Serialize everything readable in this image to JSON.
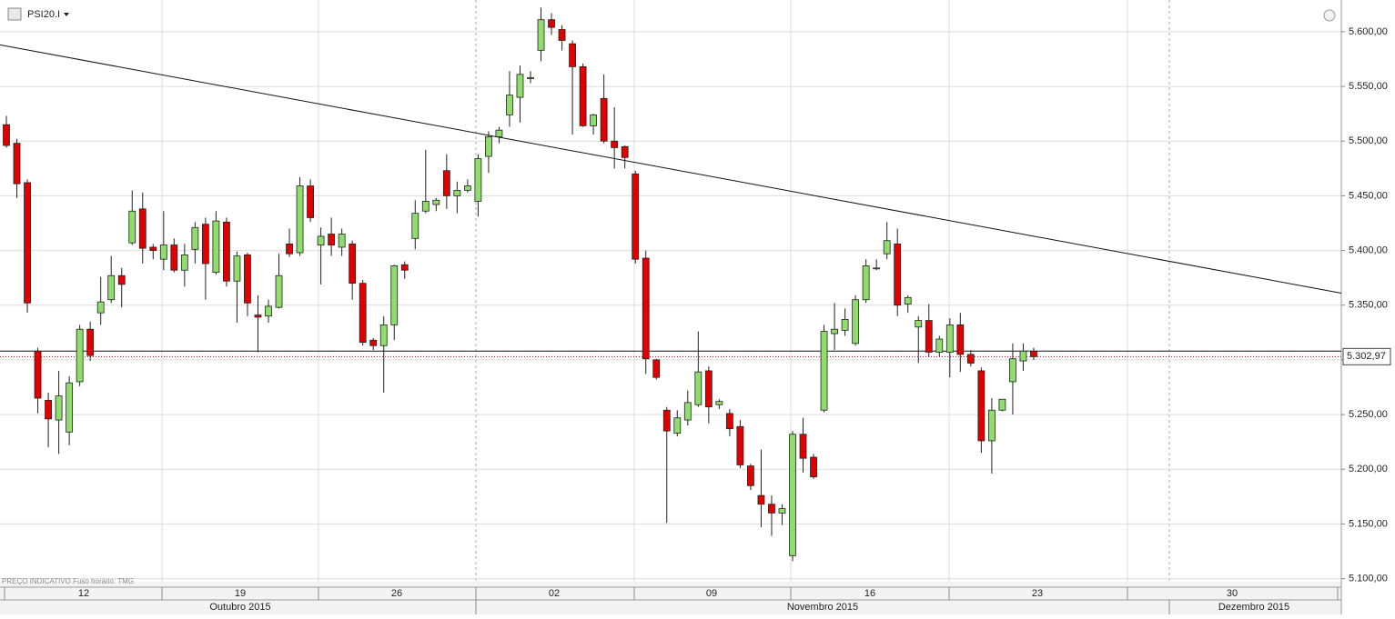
{
  "chart_data": {
    "type": "candlestick",
    "title": "PSI20.I",
    "footer": "PREÇO INDICATIVO    Fuso horário: TMG",
    "up_color": "#90dc6c",
    "down_color": "#e00000",
    "open": [
      5515,
      5498,
      5462,
      5308,
      5263,
      5245,
      5234,
      5280,
      5328,
      5343,
      5355,
      5377,
      5407,
      5438,
      5403,
      5392,
      5405,
      5382,
      5401,
      5424,
      5380,
      5426,
      5372,
      5396,
      5341,
      5340,
      5348,
      5406,
      5398,
      5459,
      5405,
      5415,
      5403,
      5406,
      5370,
      5318,
      5313,
      5332,
      5387,
      5411,
      5436,
      5442,
      5473,
      5450,
      5455,
      5445,
      5486,
      5504,
      5524,
      5540,
      5558,
      5583,
      5611,
      5602,
      5589,
      5568,
      5514,
      5539,
      5500,
      5495,
      5470,
      5393,
      5300,
      5254,
      5233,
      5245,
      5259,
      5290,
      5259,
      5251,
      5239,
      5203,
      5176,
      5168,
      5160,
      5121,
      5232,
      5211,
      5254,
      5324,
      5327,
      5315,
      5355,
      5384,
      5397,
      5406,
      5351,
      5330,
      5336,
      5307,
      5307,
      5332,
      5305,
      5290,
      5226,
      5254,
      5280,
      5299,
      5308
    ],
    "high": [
      5523,
      5502,
      5465,
      5311,
      5270,
      5290,
      5285,
      5332,
      5335,
      5376,
      5395,
      5384,
      5455,
      5453,
      5406,
      5436,
      5411,
      5406,
      5426,
      5430,
      5436,
      5430,
      5399,
      5398,
      5359,
      5355,
      5397,
      5420,
      5467,
      5465,
      5421,
      5430,
      5420,
      5409,
      5373,
      5320,
      5340,
      5387,
      5390,
      5446,
      5492,
      5448,
      5488,
      5463,
      5465,
      5488,
      5509,
      5513,
      5564,
      5569,
      5564,
      5622,
      5617,
      5606,
      5592,
      5571,
      5525,
      5561,
      5531,
      5496,
      5473,
      5400,
      5301,
      5257,
      5254,
      5272,
      5326,
      5294,
      5264,
      5255,
      5245,
      5205,
      5218,
      5176,
      5168,
      5235,
      5247,
      5214,
      5332,
      5352,
      5347,
      5359,
      5392,
      5392,
      5426,
      5420,
      5359,
      5340,
      5351,
      5322,
      5338,
      5343,
      5309,
      5293,
      5265,
      5264,
      5315,
      5315,
      5311
    ],
    "low": [
      5494,
      5448,
      5343,
      5251,
      5220,
      5214,
      5222,
      5276,
      5299,
      5332,
      5352,
      5348,
      5405,
      5388,
      5392,
      5382,
      5380,
      5367,
      5388,
      5355,
      5378,
      5367,
      5334,
      5340,
      5307,
      5334,
      5347,
      5394,
      5395,
      5426,
      5369,
      5395,
      5395,
      5355,
      5313,
      5309,
      5270,
      5318,
      5374,
      5401,
      5434,
      5436,
      5438,
      5434,
      5453,
      5431,
      5471,
      5498,
      5513,
      5517,
      5553,
      5573,
      5597,
      5583,
      5506,
      5513,
      5506,
      5498,
      5475,
      5475,
      5388,
      5287,
      5282,
      5151,
      5230,
      5240,
      5257,
      5242,
      5255,
      5230,
      5201,
      5181,
      5147,
      5139,
      5149,
      5116,
      5197,
      5191,
      5252,
      5309,
      5322,
      5313,
      5352,
      5382,
      5392,
      5340,
      5343,
      5297,
      5303,
      5303,
      5284,
      5289,
      5294,
      5215,
      5196,
      5253,
      5250,
      5290,
      5300
    ],
    "close": [
      5496,
      5461,
      5352,
      5265,
      5246,
      5267,
      5279,
      5328,
      5304,
      5353,
      5377,
      5369,
      5436,
      5402,
      5400,
      5405,
      5382,
      5396,
      5421,
      5388,
      5427,
      5372,
      5395,
      5352,
      5339,
      5349,
      5377,
      5397,
      5459,
      5430,
      5413,
      5405,
      5415,
      5370,
      5316,
      5313,
      5332,
      5386,
      5382,
      5434,
      5445,
      5446,
      5450,
      5455,
      5459,
      5484,
      5504,
      5510,
      5542,
      5561,
      5558,
      5611,
      5604,
      5592,
      5568,
      5514,
      5524,
      5500,
      5494,
      5485,
      5392,
      5301,
      5284,
      5235,
      5247,
      5261,
      5289,
      5257,
      5262,
      5237,
      5204,
      5185,
      5168,
      5160,
      5164,
      5232,
      5210,
      5193,
      5326,
      5328,
      5337,
      5355,
      5386,
      5384,
      5409,
      5350,
      5357,
      5336,
      5307,
      5319,
      5332,
      5305,
      5297,
      5226,
      5254,
      5264,
      5301,
      5308,
      5302.97
    ],
    "last_price_label": "5.302,97",
    "horizontal_line": 5308,
    "trendline": {
      "start": 5588,
      "end": 5361
    },
    "ylim": [
      5093,
      5629
    ],
    "yticks": [
      {
        "value": 5100,
        "label": "5.100,00"
      },
      {
        "value": 5150,
        "label": "5.150,00"
      },
      {
        "value": 5200,
        "label": "5.200,00"
      },
      {
        "value": 5250,
        "label": "5.250,00"
      },
      {
        "value": 5300,
        "label": "5.300,00"
      },
      {
        "value": 5350,
        "label": "5.350,00"
      },
      {
        "value": 5400,
        "label": "5.400,00"
      },
      {
        "value": 5450,
        "label": "5.450,00"
      },
      {
        "value": 5500,
        "label": "5.500,00"
      },
      {
        "value": 5550,
        "label": "5.550,00"
      },
      {
        "value": 5600,
        "label": "5.600,00"
      }
    ],
    "x_labels": [
      "12",
      "19",
      "26",
      "02",
      "09",
      "16",
      "23",
      "30"
    ],
    "month_labels": [
      "Outubro 2015",
      "Novembro 2015",
      "Dezembro 2015"
    ],
    "grid": true
  }
}
